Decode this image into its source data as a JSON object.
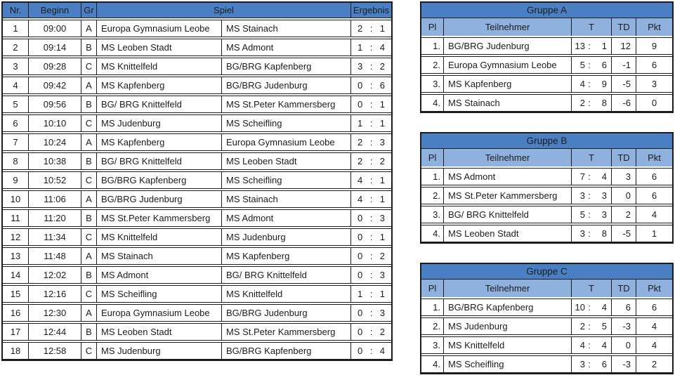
{
  "score_separator": ":",
  "colors": {
    "header_blue": "#4a80c3",
    "subheader_blue": "#8fb1de",
    "border": "#1c1c1c",
    "text": "#1c1c1c"
  },
  "schedule": {
    "headers": {
      "nr": "Nr.",
      "beginn": "Beginn",
      "gr": "Gr",
      "spiel": "Spiel",
      "ergebnis": "Ergebnis"
    },
    "rows": [
      {
        "nr": "1",
        "time": "09:00",
        "gr": "A",
        "home": "Europa Gymnasium Leobe",
        "away": "MS Stainach",
        "home_goals": "2",
        "away_goals": "1"
      },
      {
        "nr": "2",
        "time": "09:14",
        "gr": "B",
        "home": "MS Leoben Stadt",
        "away": "MS Admont",
        "home_goals": "1",
        "away_goals": "4"
      },
      {
        "nr": "3",
        "time": "09:28",
        "gr": "C",
        "home": "MS Knittelfeld",
        "away": "BG/BRG Kapfenberg",
        "home_goals": "3",
        "away_goals": "2"
      },
      {
        "nr": "4",
        "time": "09:42",
        "gr": "A",
        "home": "MS Kapfenberg",
        "away": "BG/BRG Judenburg",
        "home_goals": "0",
        "away_goals": "6"
      },
      {
        "nr": "5",
        "time": "09:56",
        "gr": "B",
        "home": "BG/ BRG Knittelfeld",
        "away": "MS St.Peter Kammersberg",
        "home_goals": "0",
        "away_goals": "1"
      },
      {
        "nr": "6",
        "time": "10:10",
        "gr": "C",
        "home": "MS Judenburg",
        "away": "MS Scheifling",
        "home_goals": "1",
        "away_goals": "1"
      },
      {
        "nr": "7",
        "time": "10:24",
        "gr": "A",
        "home": "MS Kapfenberg",
        "away": "Europa Gymnasium Leobe",
        "home_goals": "2",
        "away_goals": "3"
      },
      {
        "nr": "8",
        "time": "10:38",
        "gr": "B",
        "home": "BG/ BRG Knittelfeld",
        "away": "MS Leoben Stadt",
        "home_goals": "2",
        "away_goals": "2"
      },
      {
        "nr": "9",
        "time": "10:52",
        "gr": "C",
        "home": "BG/BRG Kapfenberg",
        "away": "MS Scheifling",
        "home_goals": "4",
        "away_goals": "1"
      },
      {
        "nr": "10",
        "time": "11:06",
        "gr": "A",
        "home": "BG/BRG Judenburg",
        "away": "MS Stainach",
        "home_goals": "4",
        "away_goals": "1"
      },
      {
        "nr": "11",
        "time": "11:20",
        "gr": "B",
        "home": "MS St.Peter Kammersberg",
        "away": "MS Admont",
        "home_goals": "0",
        "away_goals": "3"
      },
      {
        "nr": "12",
        "time": "11:34",
        "gr": "C",
        "home": "MS Knittelfeld",
        "away": "MS Judenburg",
        "home_goals": "0",
        "away_goals": "1"
      },
      {
        "nr": "13",
        "time": "11:48",
        "gr": "A",
        "home": "MS Stainach",
        "away": "MS Kapfenberg",
        "home_goals": "0",
        "away_goals": "2"
      },
      {
        "nr": "14",
        "time": "12:02",
        "gr": "B",
        "home": "MS Admont",
        "away": "BG/ BRG Knittelfeld",
        "home_goals": "0",
        "away_goals": "3"
      },
      {
        "nr": "15",
        "time": "12:16",
        "gr": "C",
        "home": "MS Scheifling",
        "away": "MS Knittelfeld",
        "home_goals": "1",
        "away_goals": "1"
      },
      {
        "nr": "16",
        "time": "12:30",
        "gr": "A",
        "home": "Europa Gymnasium Leobe",
        "away": "BG/BRG Judenburg",
        "home_goals": "0",
        "away_goals": "3"
      },
      {
        "nr": "17",
        "time": "12:44",
        "gr": "B",
        "home": "MS Leoben Stadt",
        "away": "MS St.Peter Kammersberg",
        "home_goals": "0",
        "away_goals": "2"
      },
      {
        "nr": "18",
        "time": "12:58",
        "gr": "C",
        "home": "MS Judenburg",
        "away": "BG/BRG Kapfenberg",
        "home_goals": "0",
        "away_goals": "4"
      }
    ]
  },
  "group_headers": {
    "pl": "Pl",
    "teilnehmer": "Teilnehmer",
    "t": "T",
    "td": "TD",
    "pkt": "Pkt"
  },
  "groups": [
    {
      "title": "Gruppe A",
      "rows": [
        {
          "pl": "1.",
          "team": "BG/BRG Judenburg",
          "goals_for": "13",
          "goals_against": "1",
          "diff": "12",
          "points": "9"
        },
        {
          "pl": "2.",
          "team": "Europa Gymnasium Leobe",
          "goals_for": "5",
          "goals_against": "6",
          "diff": "-1",
          "points": "6"
        },
        {
          "pl": "3.",
          "team": "MS Kapfenberg",
          "goals_for": "4",
          "goals_against": "9",
          "diff": "-5",
          "points": "3"
        },
        {
          "pl": "4.",
          "team": "MS Stainach",
          "goals_for": "2",
          "goals_against": "8",
          "diff": "-6",
          "points": "0"
        }
      ]
    },
    {
      "title": "Gruppe B",
      "rows": [
        {
          "pl": "1.",
          "team": "MS Admont",
          "goals_for": "7",
          "goals_against": "4",
          "diff": "3",
          "points": "6"
        },
        {
          "pl": "2.",
          "team": "MS St.Peter Kammersberg",
          "goals_for": "3",
          "goals_against": "3",
          "diff": "0",
          "points": "6"
        },
        {
          "pl": "3.",
          "team": "BG/ BRG Knittelfeld",
          "goals_for": "5",
          "goals_against": "3",
          "diff": "2",
          "points": "4"
        },
        {
          "pl": "4.",
          "team": "MS Leoben Stadt",
          "goals_for": "3",
          "goals_against": "8",
          "diff": "-5",
          "points": "1"
        }
      ]
    },
    {
      "title": "Gruppe C",
      "rows": [
        {
          "pl": "1.",
          "team": "BG/BRG Kapfenberg",
          "goals_for": "10",
          "goals_against": "4",
          "diff": "6",
          "points": "6"
        },
        {
          "pl": "2.",
          "team": "MS Judenburg",
          "goals_for": "2",
          "goals_against": "5",
          "diff": "-3",
          "points": "4"
        },
        {
          "pl": "3.",
          "team": "MS Knittelfeld",
          "goals_for": "4",
          "goals_against": "4",
          "diff": "0",
          "points": "4"
        },
        {
          "pl": "4.",
          "team": "MS Scheifling",
          "goals_for": "3",
          "goals_against": "6",
          "diff": "-3",
          "points": "2"
        }
      ]
    }
  ]
}
